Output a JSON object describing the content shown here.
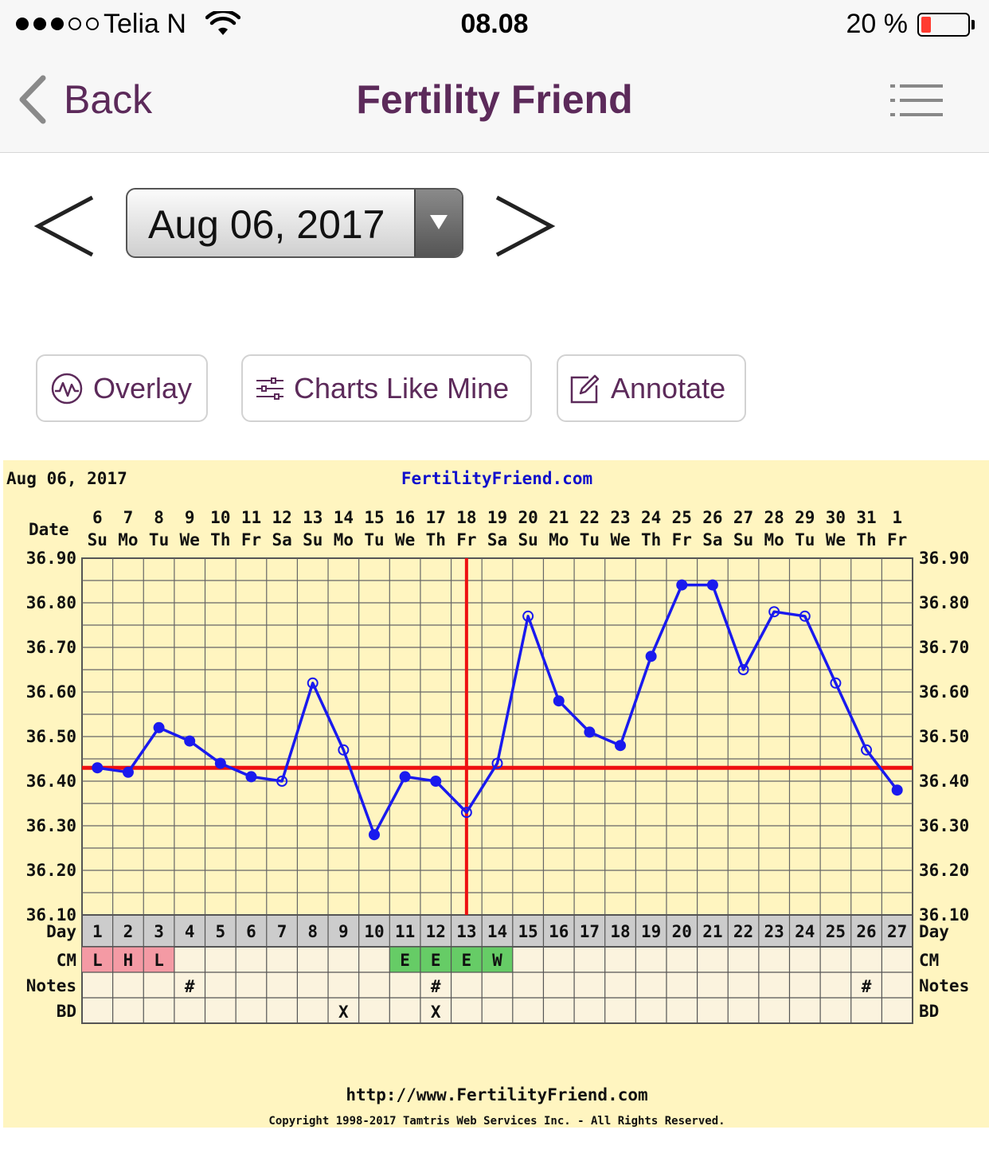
{
  "status_bar": {
    "carrier": "Telia N",
    "signal_bars_filled": 3,
    "signal_bars_total": 5,
    "time": "08.08",
    "battery": "20 %",
    "battery_level": 0.2
  },
  "nav": {
    "back_label": "Back",
    "title": "Fertility Friend",
    "menu_icon": "list-icon"
  },
  "date_selector": {
    "value": "Aug 06, 2017",
    "prev_icon": "chevron-left-icon",
    "next_icon": "chevron-right-icon"
  },
  "actions": {
    "overlay": "Overlay",
    "charts_like_mine": "Charts Like Mine",
    "annotate": "Annotate"
  },
  "colors": {
    "brand": "#5c2a5a",
    "chart_bg": "#fff5c0",
    "line": "#1a1aee",
    "coverline": "#ee1111",
    "cm_dry_fertile_low": "#f49aa4",
    "cm_egg_white": "#66cc66",
    "label_blue": "#1010cc"
  },
  "chart_data": {
    "type": "line",
    "header_date": "Aug 06, 2017",
    "site": "FertilityFriend.com",
    "footer_url": "http://www.FertilityFriend.com",
    "copyright": "Copyright 1998-2017 Tamtris Web Services Inc. - All Rights Reserved.",
    "row_labels": {
      "date": "Date",
      "day": "Day",
      "cm": "CM",
      "notes": "Notes",
      "bd": "BD"
    },
    "dates": [
      "6",
      "7",
      "8",
      "9",
      "10",
      "11",
      "12",
      "13",
      "14",
      "15",
      "16",
      "17",
      "18",
      "19",
      "20",
      "21",
      "22",
      "23",
      "24",
      "25",
      "26",
      "27",
      "28",
      "29",
      "30",
      "31",
      "1"
    ],
    "weekdays": [
      "Su",
      "Mo",
      "Tu",
      "We",
      "Th",
      "Fr",
      "Sa",
      "Su",
      "Mo",
      "Tu",
      "We",
      "Th",
      "Fr",
      "Sa",
      "Su",
      "Mo",
      "Tu",
      "We",
      "Th",
      "Fr",
      "Sa",
      "Su",
      "Mo",
      "Tu",
      "We",
      "Th",
      "Fr"
    ],
    "cycle_days": [
      1,
      2,
      3,
      4,
      5,
      6,
      7,
      8,
      9,
      10,
      11,
      12,
      13,
      14,
      15,
      16,
      17,
      18,
      19,
      20,
      21,
      22,
      23,
      24,
      25,
      26,
      27
    ],
    "y_ticks": [
      "36.90",
      "36.80",
      "36.70",
      "36.60",
      "36.50",
      "36.40",
      "36.30",
      "36.20",
      "36.10"
    ],
    "ylim": [
      36.1,
      36.9
    ],
    "series": [
      {
        "values": [
          36.43,
          36.42,
          36.52,
          36.49,
          36.44,
          36.41,
          36.4,
          36.62,
          36.47,
          36.28,
          36.41,
          36.4,
          36.33,
          36.44,
          36.77,
          36.58,
          36.51,
          36.48,
          36.68,
          36.84,
          36.84,
          36.65,
          36.78,
          36.77,
          36.62,
          36.47,
          36.38
        ],
        "open_markers": [
          false,
          false,
          false,
          false,
          false,
          false,
          true,
          true,
          true,
          false,
          false,
          false,
          true,
          true,
          true,
          false,
          false,
          false,
          false,
          false,
          false,
          true,
          true,
          true,
          true,
          true,
          false
        ]
      }
    ],
    "coverline": 36.43,
    "ovulation_day": 13,
    "cm": [
      "L",
      "H",
      "L",
      "",
      "",
      "",
      "",
      "",
      "",
      "",
      "E",
      "E",
      "E",
      "W",
      "",
      "",
      "",
      "",
      "",
      "",
      "",
      "",
      "",
      "",
      "",
      "",
      ""
    ],
    "cm_colors": [
      "pink",
      "pink",
      "pink",
      "",
      "",
      "",
      "",
      "",
      "",
      "",
      "green",
      "green",
      "green",
      "green",
      "",
      "",
      "",
      "",
      "",
      "",
      "",
      "",
      "",
      "",
      "",
      "",
      ""
    ],
    "notes": [
      "",
      "",
      "",
      "#",
      "",
      "",
      "",
      "",
      "",
      "",
      "",
      "#",
      "",
      "",
      "",
      "",
      "",
      "",
      "",
      "",
      "",
      "",
      "",
      "",
      "",
      "#",
      ""
    ],
    "bd": [
      "",
      "",
      "",
      "",
      "",
      "",
      "",
      "",
      "X",
      "",
      "",
      "X",
      "",
      "",
      "",
      "",
      "",
      "",
      "",
      "",
      "",
      "",
      "",
      "",
      "",
      "",
      ""
    ],
    "grid": true
  }
}
